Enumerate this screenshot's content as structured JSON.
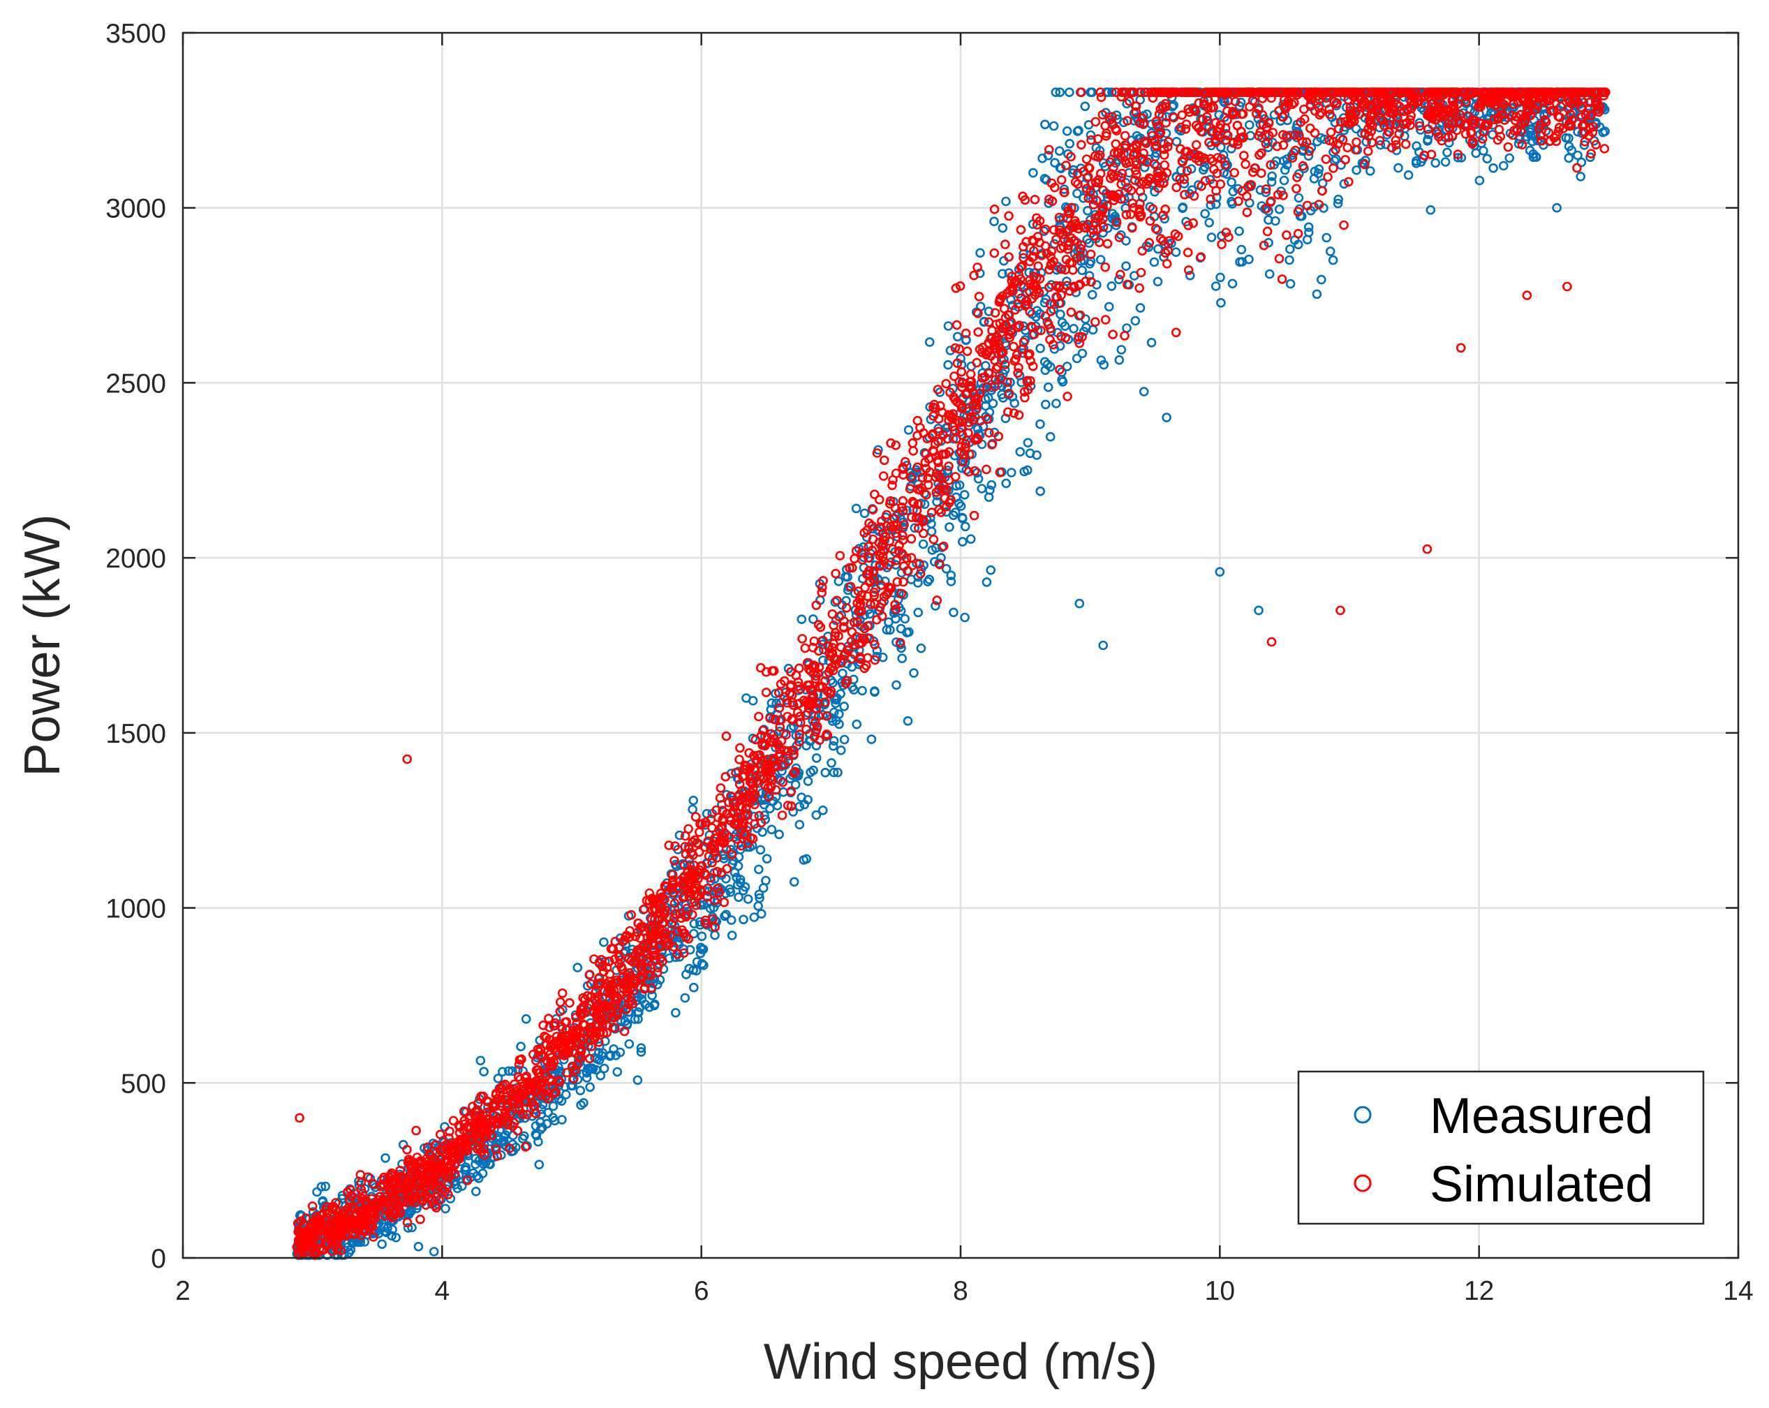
{
  "chart_data": {
    "type": "scatter",
    "title": "",
    "xlabel": "Wind speed (m/s)",
    "ylabel": "Power (kW)",
    "xlim": [
      2,
      14
    ],
    "ylim": [
      0,
      3500
    ],
    "xticks": [
      2,
      4,
      6,
      8,
      10,
      12,
      14
    ],
    "yticks": [
      0,
      500,
      1000,
      1500,
      2000,
      2500,
      3000,
      3500
    ],
    "xtick_labels": [
      "2",
      "4",
      "6",
      "8",
      "10",
      "12",
      "14"
    ],
    "ytick_labels": [
      "0",
      "500",
      "1000",
      "1500",
      "2000",
      "2500",
      "3000",
      "3500"
    ],
    "grid": true,
    "legend_position": "bottom-right",
    "marker": "open-circle",
    "series": [
      {
        "name": "Measured",
        "color": "#0072BD",
        "x": [
          2.9,
          3.0,
          3.1,
          3.2,
          3.3,
          3.5,
          3.7,
          3.9,
          4.1,
          4.3,
          4.5,
          4.7,
          4.9,
          5.1,
          5.3,
          5.5,
          5.7,
          5.9,
          6.1,
          6.3,
          6.5,
          6.7,
          6.9,
          7.1,
          7.3,
          7.5,
          7.7,
          7.9,
          8.1,
          8.3,
          8.5,
          8.7,
          8.9,
          9.1,
          9.3,
          9.5,
          9.7,
          9.9,
          10.1,
          10.3,
          10.5,
          10.7,
          10.9,
          11.1,
          11.3,
          11.5,
          11.7,
          11.9,
          12.1,
          12.3,
          12.5,
          12.7,
          12.9,
          8.4,
          9.2,
          10.3,
          10.0,
          7.0,
          6.6,
          9.1,
          12.6
        ],
        "y": [
          40,
          55,
          65,
          80,
          95,
          130,
          170,
          220,
          270,
          330,
          390,
          460,
          530,
          610,
          700,
          790,
          890,
          990,
          1100,
          1210,
          1330,
          1450,
          1580,
          1710,
          1840,
          1980,
          2110,
          2250,
          2390,
          2520,
          2650,
          2780,
          2900,
          3010,
          3100,
          3170,
          3220,
          3250,
          3270,
          3280,
          3285,
          3290,
          3292,
          3295,
          3296,
          3297,
          3298,
          3298,
          3299,
          3299,
          3300,
          3300,
          3300,
          2460,
          2950,
          1850,
          1960,
          1650,
          1210,
          1750,
          3000
        ]
      },
      {
        "name": "Simulated",
        "color": "#FF0000",
        "x": [
          2.9,
          3.0,
          3.1,
          3.2,
          3.3,
          3.5,
          3.7,
          3.9,
          4.1,
          4.3,
          4.5,
          4.7,
          4.9,
          5.1,
          5.3,
          5.5,
          5.7,
          5.9,
          6.1,
          6.3,
          6.5,
          6.7,
          6.9,
          7.1,
          7.3,
          7.5,
          7.7,
          7.9,
          8.1,
          8.3,
          8.5,
          8.7,
          8.9,
          9.1,
          9.3,
          9.5,
          9.7,
          9.9,
          10.1,
          10.3,
          10.5,
          10.7,
          10.9,
          11.1,
          11.3,
          11.5,
          11.7,
          11.9,
          12.1,
          12.3,
          12.5,
          12.7,
          12.9,
          3.73,
          2.9,
          7.85,
          11.6,
          10.93,
          10.4,
          11.86,
          12.37,
          12.68
        ],
        "y": [
          50,
          60,
          75,
          90,
          110,
          150,
          195,
          245,
          300,
          360,
          430,
          500,
          580,
          665,
          755,
          850,
          955,
          1060,
          1170,
          1290,
          1410,
          1540,
          1670,
          1800,
          1930,
          2070,
          2200,
          2340,
          2470,
          2600,
          2720,
          2840,
          2950,
          3050,
          3130,
          3190,
          3230,
          3260,
          3275,
          3285,
          3290,
          3295,
          3298,
          3300,
          3300,
          3302,
          3302,
          3303,
          3303,
          3304,
          3304,
          3305,
          3305,
          1425,
          400,
          2130,
          2025,
          1850,
          1760,
          2600,
          2750,
          2775
        ]
      }
    ]
  }
}
